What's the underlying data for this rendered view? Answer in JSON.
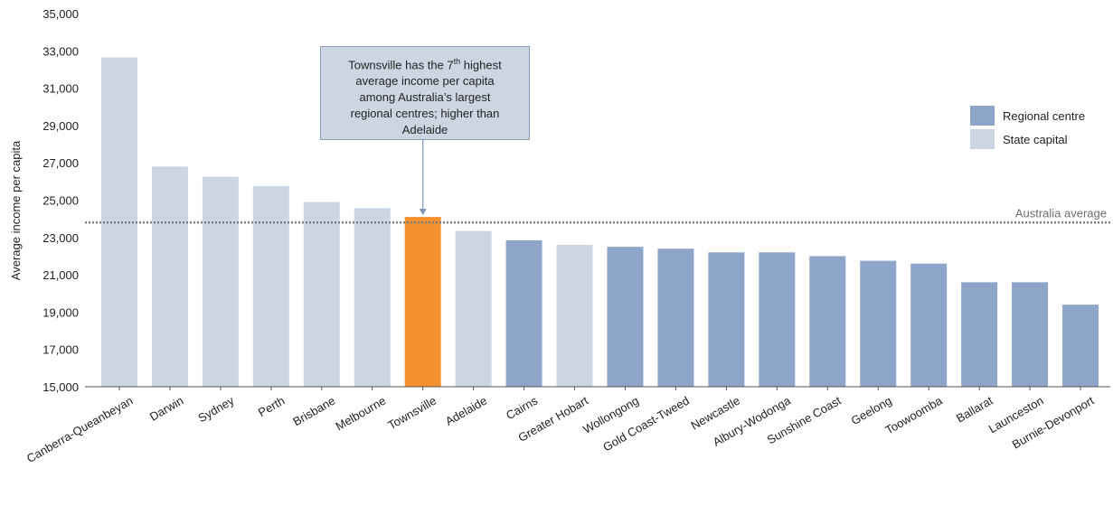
{
  "chart_data": {
    "type": "bar",
    "ylabel": "Average income per capita",
    "ylim": [
      15000,
      35000
    ],
    "yticks": [
      "15,000",
      "17,000",
      "19,000",
      "21,000",
      "23,000",
      "25,000",
      "27,000",
      "29,000",
      "31,000",
      "33,000",
      "35,000"
    ],
    "categories": [
      "Canberra-Queanbeyan",
      "Darwin",
      "Sydney",
      "Perth",
      "Brisbane",
      "Melbourne",
      "Townsville",
      "Adelaide",
      "Cairns",
      "Greater Hobart",
      "Wollongong",
      "Gold Coast-Tweed",
      "Newcastle",
      "Albury-Wodonga",
      "Sunshine Coast",
      "Geelong",
      "Toowoomba",
      "Ballarat",
      "Launceston",
      "Burnie-Devonport"
    ],
    "values": [
      32650,
      26800,
      26250,
      25750,
      24900,
      24570,
      24100,
      23350,
      22850,
      22600,
      22500,
      22400,
      22200,
      22200,
      22000,
      21750,
      21600,
      20600,
      20600,
      19400
    ],
    "groups": [
      "State capital",
      "State capital",
      "State capital",
      "State capital",
      "State capital",
      "State capital",
      "Highlight",
      "State capital",
      "Regional centre",
      "State capital",
      "Regional centre",
      "Regional centre",
      "Regional centre",
      "Regional centre",
      "Regional centre",
      "Regional centre",
      "Regional centre",
      "Regional centre",
      "Regional centre",
      "Regional centre"
    ],
    "colors": {
      "Regional centre": "#8ea5ca",
      "State capital": "#ccd6e3",
      "Highlight": "#f39130",
      "average_line": "#7f7f7f"
    },
    "legend": {
      "position": "top-right",
      "items": [
        {
          "label": "Regional centre",
          "color": "#8ea5ca"
        },
        {
          "label": "State capital",
          "color": "#ccd6e3"
        }
      ]
    },
    "reference_line": {
      "label": "Australia average",
      "value": 23800
    },
    "annotation": {
      "line1_before": "Townsville has the 7",
      "line1_sup": "th",
      "line1_after": " highest",
      "line2": "average income per capita",
      "line3": "among Australia’s largest",
      "line4": "regional centres; higher than",
      "line5": "Adelaide",
      "target": "Townsville"
    }
  }
}
